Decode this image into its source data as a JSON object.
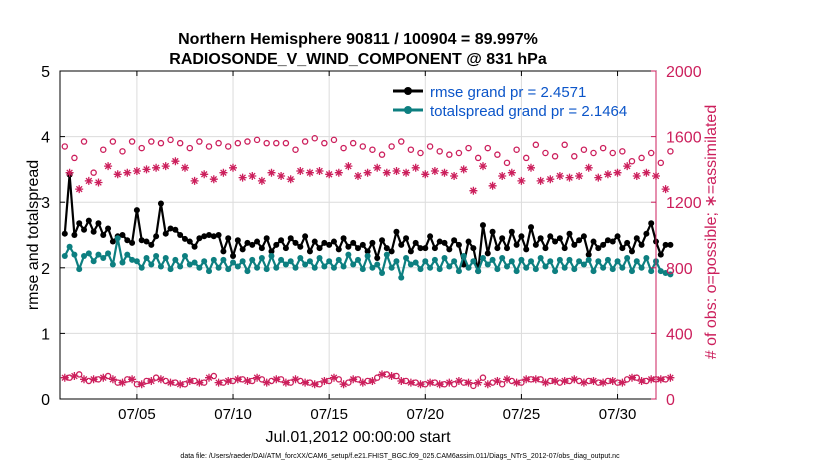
{
  "chart_data": {
    "type": "line",
    "title": [
      "Northern Hemisphere 90811 / 100904 = 89.997%",
      "RADIOSONDE_V_WIND_COMPONENT @ 831 hPa"
    ],
    "xlabel": "Jul.01,2012 00:00:00 start",
    "ylabel": "rmse and totalspread",
    "ylabel_right": "# of obs: o=possible; ∗=assimilated",
    "xlim": [
      1.0,
      32.0
    ],
    "ylim": [
      0,
      5
    ],
    "ylim_right": [
      0,
      2000
    ],
    "x_ticks": [
      5,
      10,
      15,
      20,
      25,
      30
    ],
    "x_tick_labels": [
      "07/05",
      "07/10",
      "07/15",
      "07/20",
      "07/25",
      "07/30"
    ],
    "y_ticks": [
      0,
      1,
      2,
      3,
      4,
      5
    ],
    "y_tick_labels": [
      "0",
      "1",
      "2",
      "3",
      "4",
      "5"
    ],
    "y_ticks_right": [
      0,
      400,
      800,
      1200,
      1600,
      2000
    ],
    "y_tick_labels_right": [
      "0",
      "400",
      "800",
      "1200",
      "1600",
      "2000"
    ],
    "footnote": "data file: /Users/raeder/DAI/ATM_forcXX/CAM6_setup/f.e21.FHIST_BGC.f09_025.CAM6assim.011/Diags_NTrS_2012-07/obs_diag_output.nc",
    "x_start": 1.25,
    "x_step": 0.25,
    "series": [
      {
        "name": "rmse grand pr = 2.4571",
        "color": "#000000",
        "marker": "dot",
        "axis": "left",
        "values": [
          2.52,
          3.42,
          2.5,
          2.68,
          2.58,
          2.72,
          2.55,
          2.68,
          2.5,
          2.6,
          2.4,
          2.48,
          2.5,
          2.42,
          2.38,
          2.88,
          2.42,
          2.4,
          2.35,
          2.48,
          2.98,
          2.52,
          2.6,
          2.58,
          2.5,
          2.44,
          2.4,
          2.32,
          2.45,
          2.48,
          2.5,
          2.48,
          2.5,
          2.25,
          2.45,
          2.18,
          2.42,
          2.28,
          2.38,
          2.35,
          2.4,
          2.3,
          2.45,
          2.25,
          2.35,
          2.42,
          2.3,
          2.45,
          2.38,
          2.32,
          2.48,
          2.25,
          2.4,
          2.3,
          2.38,
          2.35,
          2.4,
          2.28,
          2.45,
          2.32,
          2.38,
          2.3,
          2.35,
          2.25,
          2.38,
          2.15,
          2.42,
          2.3,
          2.25,
          2.55,
          2.35,
          2.45,
          2.25,
          2.38,
          2.3,
          2.3,
          2.48,
          2.3,
          2.4,
          2.38,
          2.28,
          2.42,
          2.35,
          2.05,
          2.4,
          2.3,
          1.95,
          2.65,
          2.22,
          2.55,
          2.3,
          2.45,
          2.3,
          2.55,
          2.35,
          2.48,
          2.28,
          2.62,
          2.35,
          2.45,
          2.3,
          2.48,
          2.4,
          2.45,
          2.3,
          2.52,
          2.35,
          2.42,
          2.48,
          2.2,
          2.4,
          2.3,
          2.35,
          2.42,
          2.4,
          2.48,
          2.3,
          2.38,
          2.25,
          2.45,
          2.35,
          2.52,
          2.68,
          2.4,
          2.2,
          2.35,
          2.35
        ]
      },
      {
        "name": "totalspread grand pr = 2.1464",
        "color": "#0d7f80",
        "marker": "dot",
        "axis": "left",
        "values": [
          2.18,
          2.32,
          2.2,
          1.98,
          2.18,
          2.22,
          2.1,
          2.2,
          2.15,
          2.22,
          2.05,
          2.45,
          2.08,
          2.2,
          2.12,
          2.1,
          2.0,
          2.15,
          2.05,
          2.18,
          2.02,
          2.15,
          1.98,
          2.12,
          2.02,
          2.18,
          2.05,
          2.08,
          2.0,
          2.1,
          1.95,
          2.12,
          2.0,
          2.12,
          1.98,
          2.08,
          2.02,
          2.1,
          1.95,
          2.12,
          2.0,
          2.15,
          1.98,
          2.18,
          2.0,
          2.12,
          2.05,
          2.1,
          2.0,
          2.15,
          2.05,
          2.1,
          2.0,
          2.15,
          2.02,
          2.1,
          2.0,
          2.12,
          2.02,
          2.2,
          2.05,
          2.12,
          1.98,
          2.18,
          2.0,
          2.05,
          1.92,
          2.2,
          2.0,
          2.1,
          1.85,
          2.15,
          2.05,
          2.08,
          1.98,
          2.1,
          2.0,
          2.12,
          1.98,
          2.15,
          2.02,
          2.1,
          1.95,
          2.18,
          2.0,
          2.1,
          1.95,
          2.15,
          2.05,
          2.12,
          1.98,
          2.15,
          2.02,
          2.1,
          1.95,
          2.12,
          2.0,
          2.1,
          1.98,
          2.15,
          2.02,
          2.1,
          1.95,
          2.12,
          2.0,
          2.12,
          1.98,
          2.1,
          2.05,
          2.12,
          1.95,
          2.1,
          2.0,
          2.12,
          1.98,
          2.1,
          2.0,
          2.15,
          1.95,
          2.1,
          2.0,
          2.15,
          1.95,
          2.1,
          1.95,
          1.92,
          1.9
        ]
      },
      {
        "name": "possible",
        "color": "#cc1f5c",
        "marker": "circle",
        "axis": "right",
        "values": [
          1540,
          130,
          1470,
          150,
          1570,
          110,
          1380,
          120,
          1520,
          140,
          1570,
          100,
          1510,
          120,
          1570,
          90,
          1530,
          110,
          1570,
          130,
          1560,
          110,
          1580,
          100,
          1560,
          90,
          1530,
          110,
          1570,
          100,
          1540,
          140,
          1560,
          100,
          1540,
          110,
          1560,
          120,
          1570,
          110,
          1580,
          120,
          1560,
          110,
          1560,
          120,
          1560,
          100,
          1520,
          110,
          1570,
          100,
          1590,
          90,
          1560,
          110,
          1580,
          120,
          1530,
          100,
          1560,
          120,
          1540,
          110,
          1520,
          130,
          1490,
          150,
          1540,
          140,
          1570,
          110,
          1520,
          100,
          1500,
          90,
          1540,
          100,
          1510,
          90,
          1490,
          90,
          1500,
          100,
          1530,
          80,
          1470,
          130,
          1530,
          100,
          1490,
          90,
          1440,
          110,
          1520,
          100,
          1470,
          120,
          1550,
          120,
          1500,
          110,
          1480,
          100,
          1550,
          110,
          1480,
          110,
          1520,
          110,
          1500,
          100,
          1530,
          110,
          1500,
          100,
          1510,
          120,
          1450,
          130,
          1470,
          110,
          1500,
          120,
          1440,
          120,
          1510
        ]
      },
      {
        "name": "assimilated",
        "color": "#cc1f5c",
        "marker": "star",
        "axis": "right",
        "values": [
          130,
          1380,
          140,
          1280,
          120,
          1330,
          120,
          1320,
          130,
          1420,
          120,
          1370,
          100,
          1380,
          120,
          1390,
          90,
          1400,
          110,
          1410,
          120,
          1420,
          100,
          1450,
          90,
          1410,
          110,
          1330,
          100,
          1370,
          130,
          1340,
          100,
          1380,
          110,
          1410,
          120,
          1350,
          110,
          1360,
          130,
          1330,
          100,
          1380,
          120,
          1360,
          100,
          1340,
          120,
          1390,
          100,
          1380,
          90,
          1390,
          110,
          1370,
          130,
          1380,
          90,
          1420,
          120,
          1360,
          100,
          1380,
          110,
          1410,
          150,
          1380,
          140,
          1390,
          110,
          1380,
          100,
          1410,
          90,
          1370,
          100,
          1390,
          90,
          1380,
          100,
          1360,
          110,
          1400,
          100,
          1270,
          100,
          1420,
          90,
          1300,
          110,
          1360,
          120,
          1380,
          100,
          1330,
          120,
          1410,
          120,
          1330,
          100,
          1340,
          110,
          1360,
          110,
          1350,
          120,
          1360,
          100,
          1410,
          110,
          1350,
          100,
          1370,
          110,
          1380,
          100,
          1420,
          130,
          1360,
          110,
          1380,
          120,
          1360,
          120,
          1280,
          130
        ]
      }
    ],
    "legend": {
      "position": "top-right",
      "entries": [
        "rmse grand pr = 2.4571",
        "totalspread grand pr = 2.1464"
      ]
    }
  }
}
